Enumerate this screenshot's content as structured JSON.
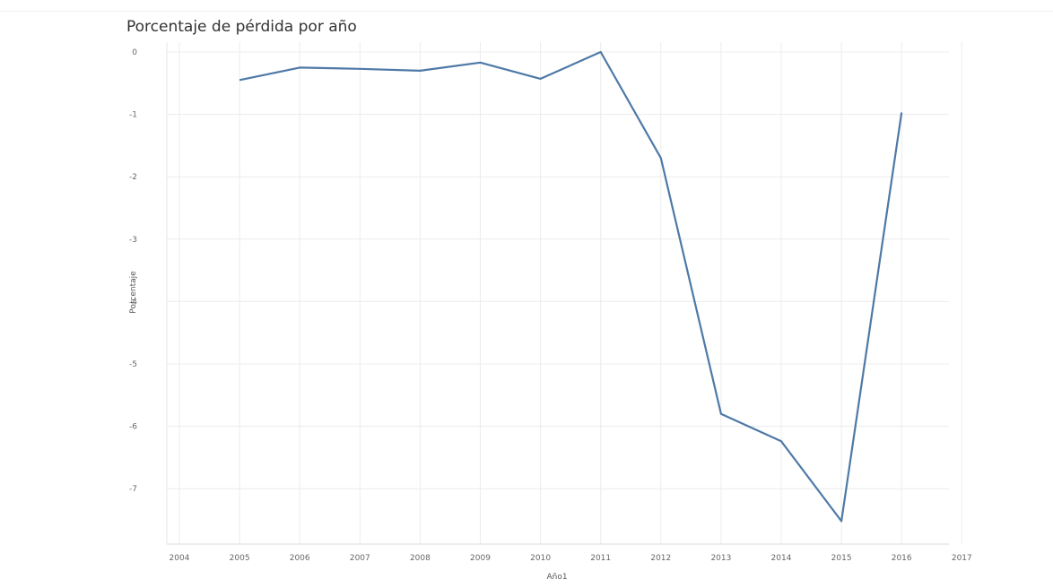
{
  "chart_data": {
    "type": "line",
    "title": "Porcentaje de pérdida por año",
    "xlabel": "Año1",
    "ylabel": "Porcentaje",
    "x": [
      2005,
      2006,
      2007,
      2008,
      2009,
      2010,
      2011,
      2012,
      2013,
      2014,
      2015,
      2016
    ],
    "series": [
      {
        "values": [
          -0.45,
          -0.25,
          -0.27,
          -0.3,
          -0.17,
          -0.43,
          0.0,
          -1.7,
          -5.8,
          -6.24,
          -7.52,
          -0.97
        ]
      }
    ],
    "xticks": [
      "2004",
      "2005",
      "2006",
      "2007",
      "2008",
      "2009",
      "2010",
      "2011",
      "2012",
      "2013",
      "2014",
      "2015",
      "2016",
      "2017"
    ],
    "yticks": [
      "0",
      "-1",
      "-2",
      "-3",
      "-4",
      "-5",
      "-6",
      "-7"
    ],
    "xlim": [
      2004,
      2017
    ],
    "ylim": [
      -8,
      0
    ],
    "grid": true,
    "colors": {
      "line": "#4e79a7",
      "grid": "#ececec"
    }
  }
}
